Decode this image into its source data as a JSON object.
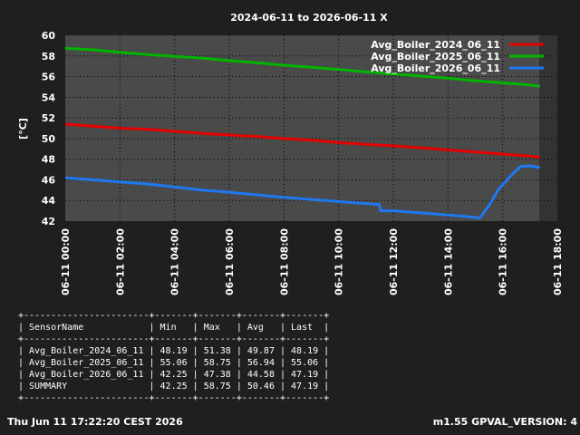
{
  "chart_data": {
    "type": "line",
    "title": "2024-06-11 to 2026-06-11 X",
    "ylabel": "[°C]",
    "xlabel": "",
    "x_unit": "time of day (2026-06-11)",
    "xlim": [
      "00:00",
      "18:00"
    ],
    "ylim": [
      42,
      60
    ],
    "y_ticks": [
      42,
      44,
      46,
      48,
      50,
      52,
      54,
      56,
      58,
      60
    ],
    "x_ticks": [
      "06-11 00:00",
      "06-11 02:00",
      "06-11 04:00",
      "06-11 06:00",
      "06-11 08:00",
      "06-11 10:00",
      "06-11 12:00",
      "06-11 14:00",
      "06-11 16:00",
      "06-11 18:00"
    ],
    "grid": true,
    "legend_position": "top-right",
    "series": [
      {
        "name": "Avg_Boiler_2024_06_11",
        "color": "#e60000",
        "points": [
          [
            "00:00",
            51.4
          ],
          [
            "01:00",
            51.2
          ],
          [
            "02:00",
            51.0
          ],
          [
            "03:00",
            50.9
          ],
          [
            "04:00",
            50.7
          ],
          [
            "05:00",
            50.5
          ],
          [
            "06:00",
            50.35
          ],
          [
            "07:00",
            50.2
          ],
          [
            "08:00",
            50.0
          ],
          [
            "09:00",
            49.85
          ],
          [
            "10:00",
            49.6
          ],
          [
            "11:00",
            49.45
          ],
          [
            "12:00",
            49.3
          ],
          [
            "13:00",
            49.1
          ],
          [
            "14:00",
            48.9
          ],
          [
            "15:00",
            48.7
          ],
          [
            "16:00",
            48.5
          ],
          [
            "17:00",
            48.3
          ],
          [
            "17:22",
            48.19
          ]
        ]
      },
      {
        "name": "Avg_Boiler_2025_06_11",
        "color": "#00b400",
        "points": [
          [
            "00:00",
            58.75
          ],
          [
            "01:00",
            58.6
          ],
          [
            "02:00",
            58.35
          ],
          [
            "03:00",
            58.15
          ],
          [
            "04:00",
            57.95
          ],
          [
            "05:00",
            57.8
          ],
          [
            "06:00",
            57.55
          ],
          [
            "07:00",
            57.35
          ],
          [
            "08:00",
            57.1
          ],
          [
            "09:00",
            56.9
          ],
          [
            "10:00",
            56.7
          ],
          [
            "11:00",
            56.45
          ],
          [
            "12:00",
            56.25
          ],
          [
            "13:00",
            56.05
          ],
          [
            "14:00",
            55.85
          ],
          [
            "15:00",
            55.6
          ],
          [
            "16:00",
            55.4
          ],
          [
            "17:00",
            55.2
          ],
          [
            "17:22",
            55.06
          ]
        ]
      },
      {
        "name": "Avg_Boiler_2026_06_11",
        "color": "#1e78f0",
        "points": [
          [
            "00:00",
            46.2
          ],
          [
            "01:00",
            46.0
          ],
          [
            "02:00",
            45.8
          ],
          [
            "03:00",
            45.6
          ],
          [
            "04:00",
            45.3
          ],
          [
            "05:00",
            45.0
          ],
          [
            "06:00",
            44.8
          ],
          [
            "07:00",
            44.55
          ],
          [
            "08:00",
            44.3
          ],
          [
            "09:00",
            44.1
          ],
          [
            "10:00",
            43.9
          ],
          [
            "11:00",
            43.7
          ],
          [
            "11:30",
            43.6
          ],
          [
            "11:32",
            43.0
          ],
          [
            "12:00",
            43.0
          ],
          [
            "13:00",
            42.8
          ],
          [
            "14:00",
            42.6
          ],
          [
            "14:50",
            42.4
          ],
          [
            "15:10",
            42.3
          ],
          [
            "15:30",
            43.5
          ],
          [
            "15:50",
            45.0
          ],
          [
            "16:20",
            46.5
          ],
          [
            "16:40",
            47.3
          ],
          [
            "17:00",
            47.35
          ],
          [
            "17:22",
            47.19
          ]
        ]
      }
    ]
  },
  "stats_table": {
    "border": "+-----------------------+-------+-------+-------+-------+",
    "header": "| SensorName            | Min   | Max   | Avg   | Last  |",
    "rows": [
      "| Avg_Boiler_2024_06_11 | 48.19 | 51.38 | 49.87 | 48.19 |",
      "| Avg_Boiler_2025_06_11 | 55.06 | 58.75 | 56.94 | 55.06 |",
      "| Avg_Boiler_2026_06_11 | 42.25 | 47.38 | 44.58 | 47.19 |",
      "| SUMMARY               | 42.25 | 58.75 | 50.46 | 47.19 |"
    ]
  },
  "footer": {
    "timestamp": "Thu Jun 11 17:22:20 CEST 2026",
    "version": "m1.55 GPVAL_VERSION: 4"
  },
  "colors": {
    "background": "#1f1f1f",
    "plot_area": "#4a4a4a",
    "grid": "#000000",
    "text": "#ffffff"
  }
}
